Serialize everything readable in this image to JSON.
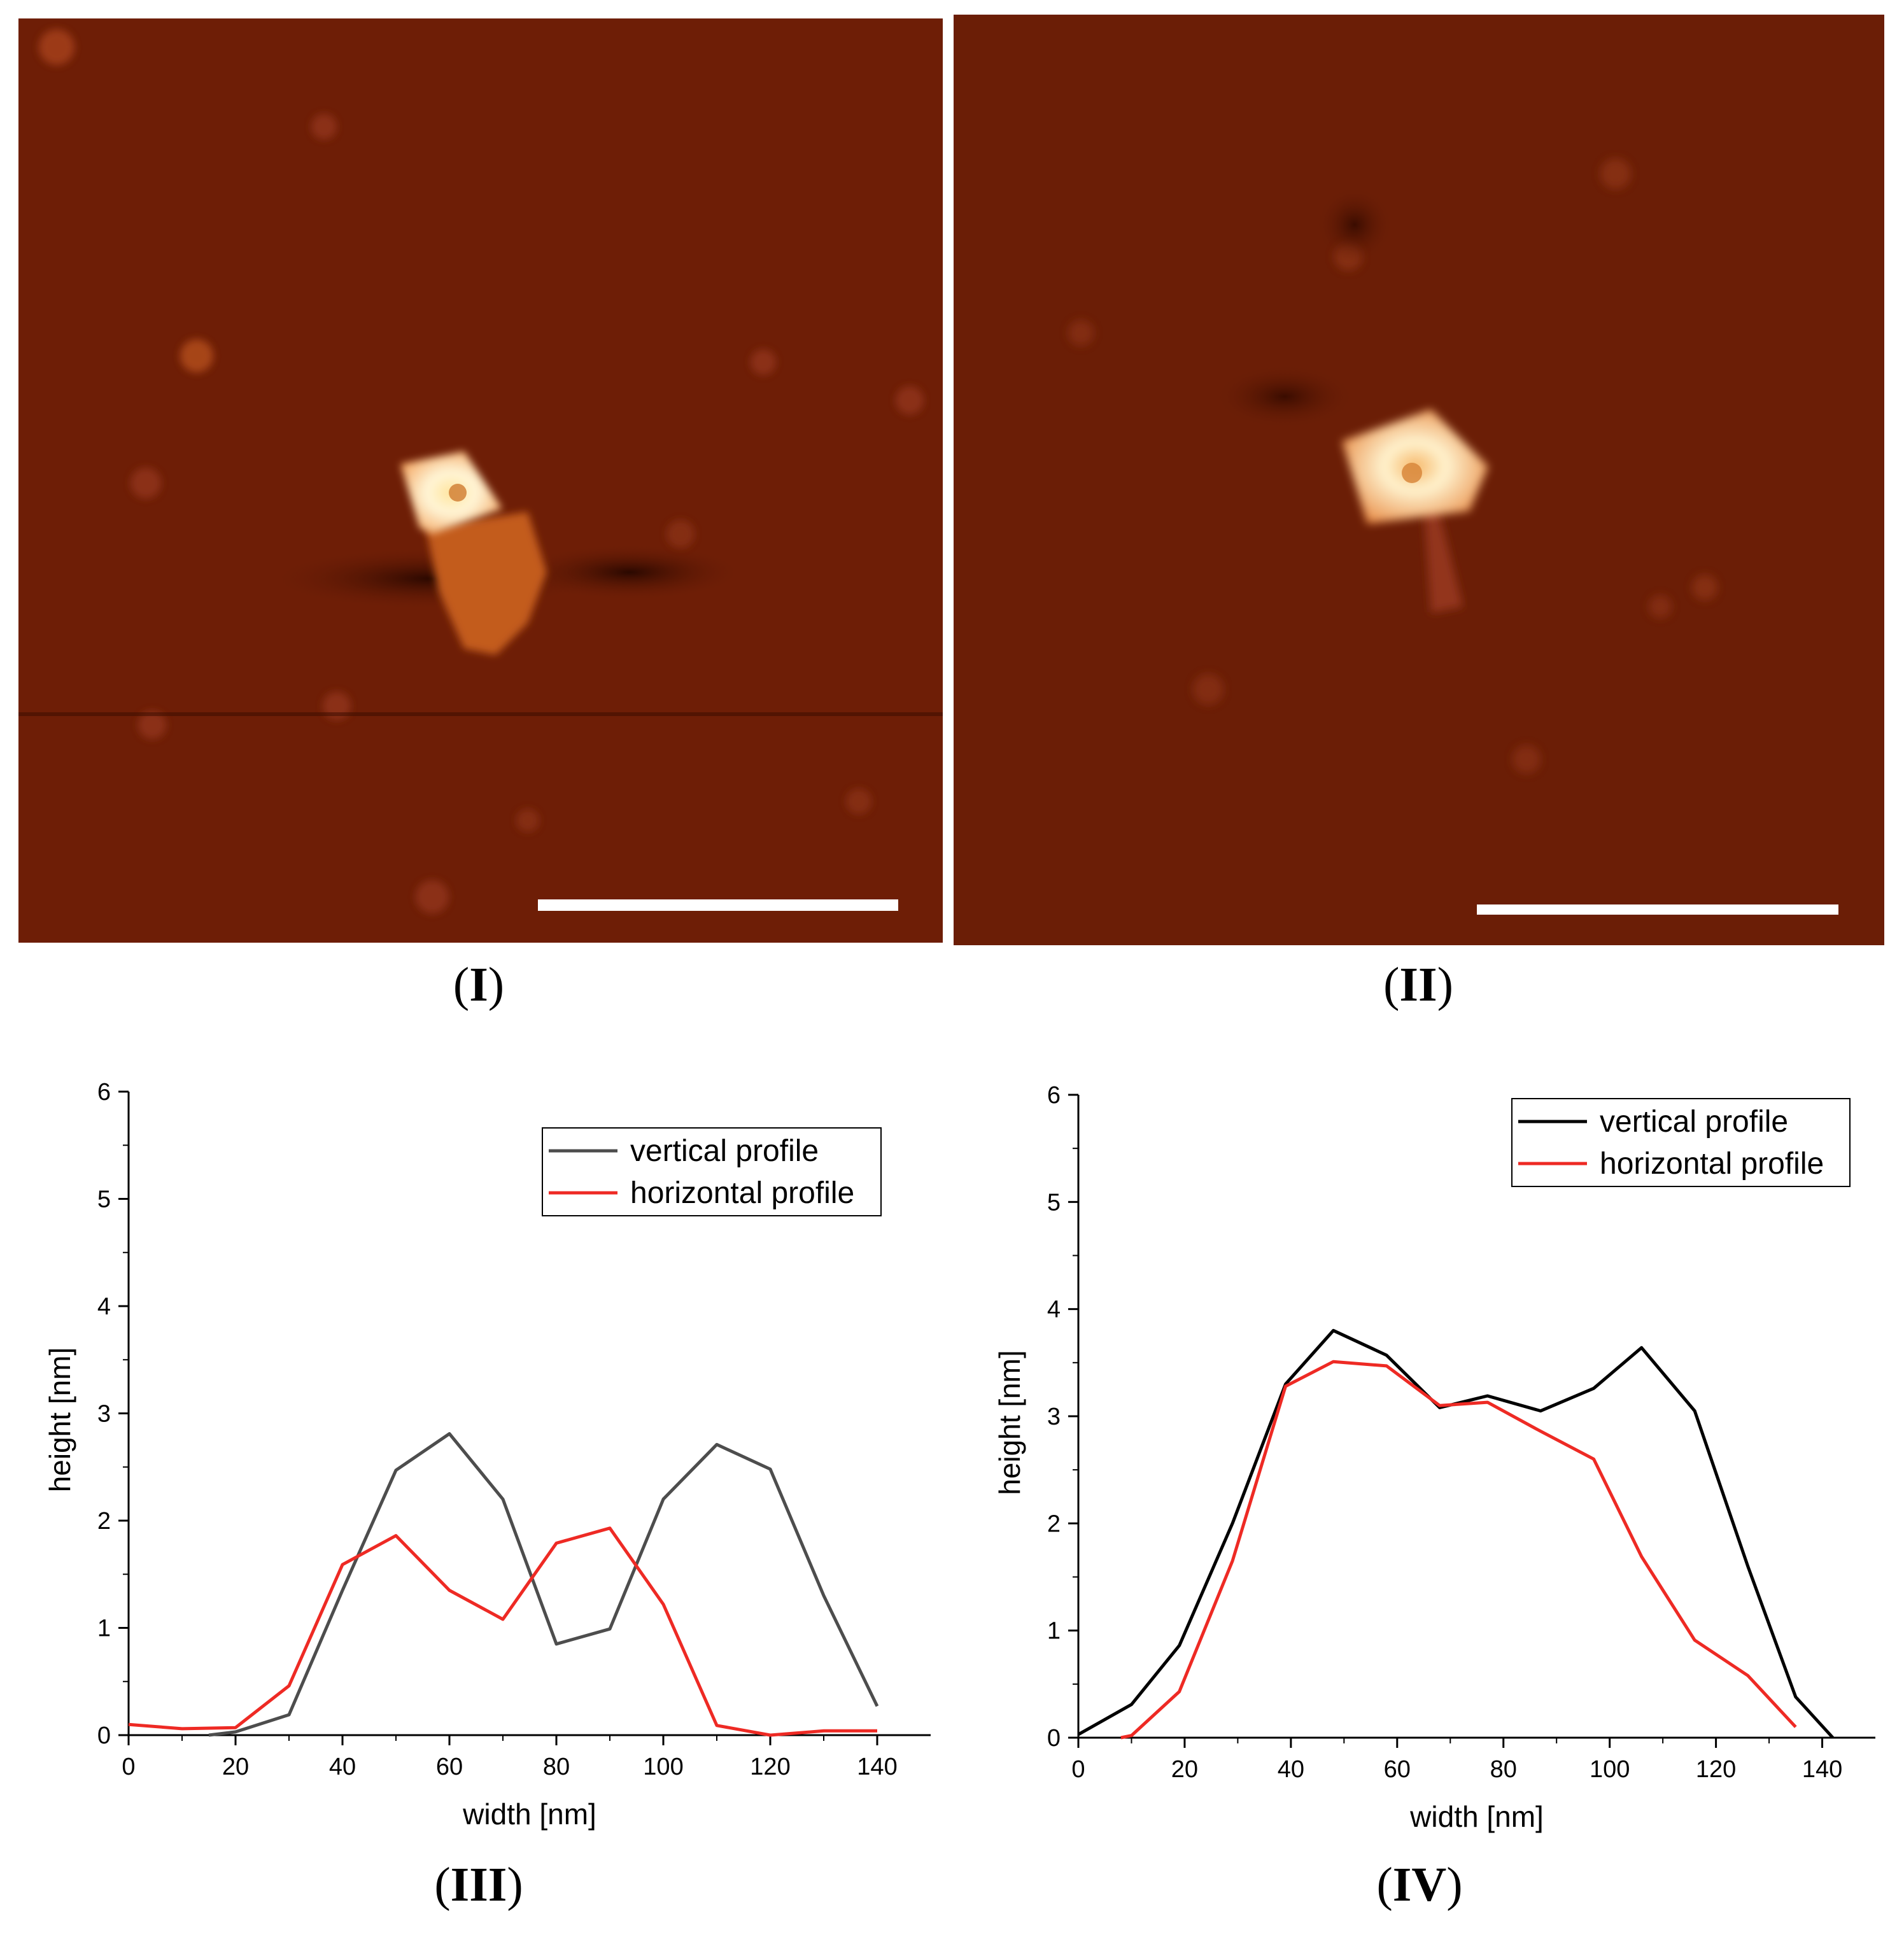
{
  "panels": {
    "I": {
      "label_open": "(",
      "label_numeral": "I",
      "label_close": ")"
    },
    "II": {
      "label_open": "(",
      "label_numeral": "II",
      "label_close": ")"
    },
    "III": {
      "label_open": "(",
      "label_numeral": "III",
      "label_close": ")"
    },
    "IV": {
      "label_open": "(",
      "label_numeral": "IV",
      "label_close": ")"
    }
  },
  "colors": {
    "afm_background": "#6e1e06",
    "afm_bright": "#fff4c8",
    "scale_bar": "#ffffff",
    "vertical_III": "#4d4d4d",
    "vertical_IV": "#000000",
    "horizontal": "#ee2a24"
  },
  "chart_data": [
    {
      "panel": "III",
      "type": "line",
      "xlabel": "width [nm]",
      "ylabel": "height [nm]",
      "xlim": [
        0,
        150
      ],
      "ylim": [
        0,
        6
      ],
      "xticks": [
        0,
        20,
        40,
        60,
        80,
        100,
        120,
        140
      ],
      "yticks": [
        0,
        1,
        2,
        3,
        4,
        5,
        6
      ],
      "legend_position": "top-right",
      "series": [
        {
          "name": "vertical profile",
          "color": "#4d4d4d",
          "x": [
            15,
            20,
            30,
            40,
            50,
            60,
            70,
            80,
            90,
            100,
            110,
            120,
            130,
            140
          ],
          "y": [
            0.0,
            0.03,
            0.19,
            1.35,
            2.47,
            2.81,
            2.2,
            0.85,
            0.99,
            2.2,
            2.71,
            2.48,
            1.3,
            0.27
          ]
        },
        {
          "name": "horizontal profile",
          "color": "#ee2a24",
          "x": [
            0,
            10,
            20,
            30,
            40,
            50,
            60,
            70,
            80,
            90,
            100,
            110,
            120,
            130,
            140
          ],
          "y": [
            0.1,
            0.06,
            0.07,
            0.46,
            1.59,
            1.86,
            1.35,
            1.08,
            1.79,
            1.93,
            1.22,
            0.09,
            0.0,
            0.04,
            0.04
          ]
        }
      ]
    },
    {
      "panel": "IV",
      "type": "line",
      "xlabel": "width [nm]",
      "ylabel": "height [nm]",
      "xlim": [
        0,
        150
      ],
      "ylim": [
        0,
        6
      ],
      "xticks": [
        0,
        20,
        40,
        60,
        80,
        100,
        120,
        140
      ],
      "yticks": [
        0,
        1,
        2,
        3,
        4,
        5,
        6
      ],
      "legend_position": "top-right",
      "series": [
        {
          "name": "vertical profile",
          "color": "#000000",
          "x": [
            0,
            10,
            19,
            29,
            39,
            48,
            58,
            68,
            77,
            87,
            97,
            106,
            116,
            126,
            135,
            142
          ],
          "y": [
            0.03,
            0.31,
            0.86,
            2.0,
            3.3,
            3.8,
            3.57,
            3.08,
            3.19,
            3.05,
            3.26,
            3.64,
            3.05,
            1.6,
            0.38,
            0.0
          ]
        },
        {
          "name": "horizontal profile",
          "color": "#ee2a24",
          "x": [
            8,
            10,
            19,
            29,
            39,
            48,
            58,
            68,
            77,
            87,
            97,
            106,
            116,
            126,
            135
          ],
          "y": [
            0.0,
            0.02,
            0.43,
            1.65,
            3.28,
            3.51,
            3.47,
            3.1,
            3.13,
            2.86,
            2.6,
            1.69,
            0.91,
            0.58,
            0.1
          ]
        }
      ]
    }
  ]
}
